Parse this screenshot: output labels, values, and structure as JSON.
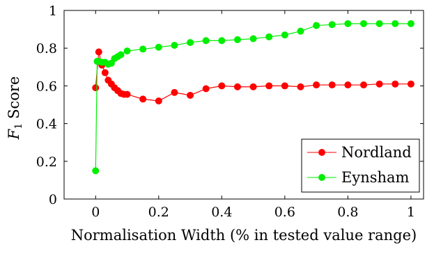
{
  "chart_data": {
    "type": "line",
    "xlabel": "Normalisation Width (% in tested value range)",
    "ylabel_italic": "F",
    "ylabel_sub": "1",
    "ylabel_rest": "Score",
    "xlim": [
      -0.1,
      1.04
    ],
    "ylim": [
      0,
      1
    ],
    "xticks": [
      0,
      0.2,
      0.4,
      0.6,
      0.8,
      1
    ],
    "xtick_labels": [
      "0",
      "0.2",
      "0.4",
      "0.6",
      "0.8",
      "1"
    ],
    "yticks": [
      0,
      0.2,
      0.4,
      0.6,
      0.8,
      1
    ],
    "ytick_labels": [
      "0",
      "0.2",
      "0.4",
      "0.6",
      "0.8",
      "1"
    ],
    "grid": false,
    "legend_position": "bottom-right",
    "series": [
      {
        "name": "Nordland",
        "color": "#ff0000",
        "x": [
          0,
          0.01,
          0.02,
          0.03,
          0.04,
          0.05,
          0.06,
          0.07,
          0.08,
          0.09,
          0.1,
          0.15,
          0.2,
          0.25,
          0.3,
          0.35,
          0.4,
          0.45,
          0.5,
          0.55,
          0.6,
          0.65,
          0.7,
          0.75,
          0.8,
          0.85,
          0.9,
          0.95,
          1.0
        ],
        "y": [
          0.59,
          0.78,
          0.71,
          0.67,
          0.63,
          0.61,
          0.59,
          0.575,
          0.56,
          0.555,
          0.555,
          0.53,
          0.52,
          0.565,
          0.55,
          0.585,
          0.6,
          0.595,
          0.595,
          0.6,
          0.6,
          0.595,
          0.605,
          0.605,
          0.605,
          0.605,
          0.61,
          0.61,
          0.61
        ]
      },
      {
        "name": "Eynsham",
        "color": "#00ee00",
        "x": [
          0,
          0.005,
          0.01,
          0.02,
          0.03,
          0.04,
          0.05,
          0.06,
          0.07,
          0.08,
          0.1,
          0.15,
          0.2,
          0.25,
          0.3,
          0.35,
          0.4,
          0.45,
          0.5,
          0.55,
          0.6,
          0.65,
          0.7,
          0.75,
          0.8,
          0.85,
          0.9,
          0.95,
          1.0
        ],
        "y": [
          0.15,
          0.73,
          0.73,
          0.725,
          0.725,
          0.715,
          0.72,
          0.745,
          0.755,
          0.765,
          0.785,
          0.795,
          0.805,
          0.815,
          0.83,
          0.84,
          0.84,
          0.845,
          0.85,
          0.86,
          0.87,
          0.89,
          0.92,
          0.925,
          0.93,
          0.93,
          0.93,
          0.93,
          0.93
        ]
      }
    ]
  }
}
